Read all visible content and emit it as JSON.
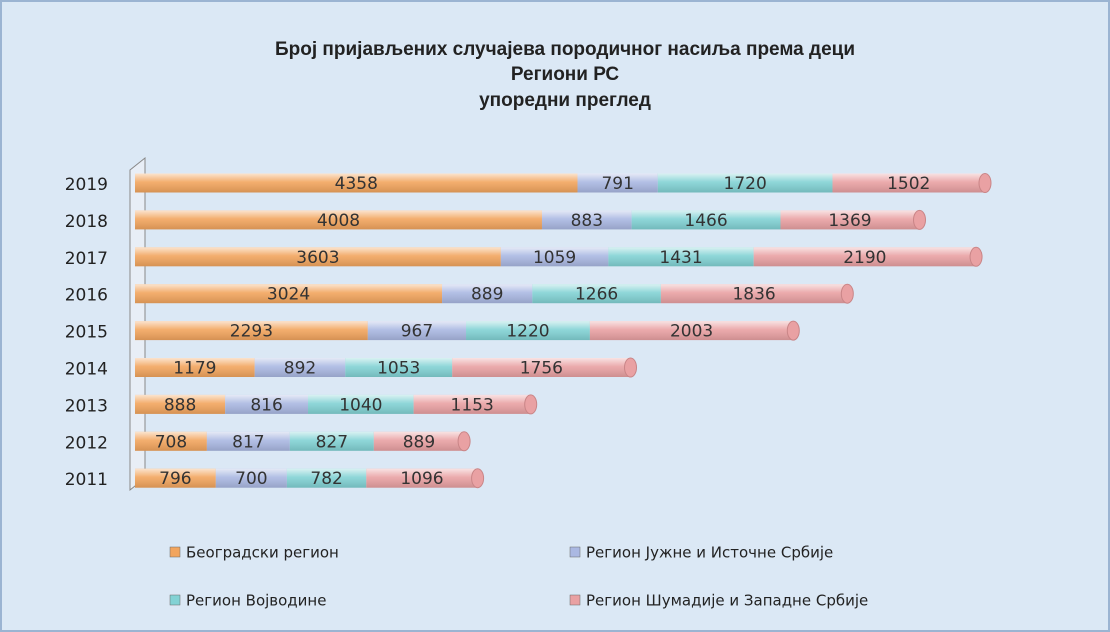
{
  "chart_data": {
    "type": "stacked-bar-horizontal",
    "title": [
      "Број пријављених случајева породичног насиља према деци",
      "Региони РС",
      "упоредни преглед"
    ],
    "categories": [
      "2019",
      "2018",
      "2017",
      "2016",
      "2015",
      "2014",
      "2013",
      "2012",
      "2011"
    ],
    "series": [
      {
        "name": "Београдски регион",
        "color": "#f2a55e",
        "values": [
          4358,
          4008,
          3603,
          3024,
          2293,
          1179,
          888,
          708,
          796
        ]
      },
      {
        "name": "Регион Јужне и Источне Србије",
        "color": "#aab8e2",
        "values": [
          791,
          883,
          1059,
          889,
          967,
          892,
          816,
          817,
          700
        ]
      },
      {
        "name": "Регион Војводине",
        "color": "#82d2d4",
        "values": [
          1720,
          1466,
          1431,
          1266,
          1220,
          1053,
          1040,
          827,
          782
        ]
      },
      {
        "name": "Регион Шумадије и Западне Србије",
        "color": "#e9a1a3",
        "values": [
          1502,
          1369,
          2190,
          1836,
          2003,
          1756,
          1153,
          889,
          1096
        ]
      }
    ],
    "legend": "bottom"
  }
}
